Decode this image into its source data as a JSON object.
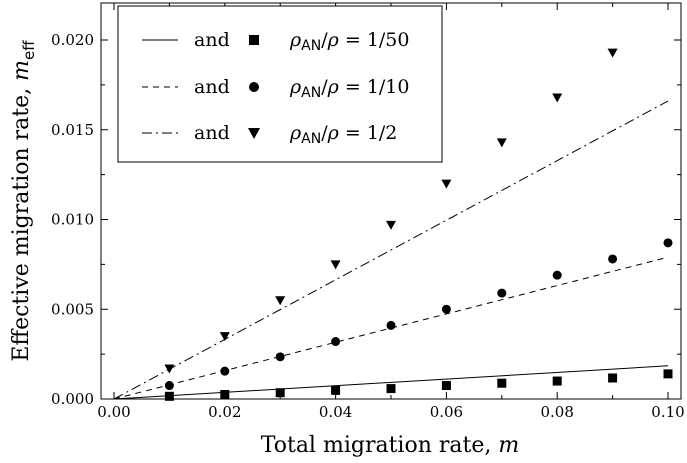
{
  "chart_data": {
    "type": "scatter",
    "xlabel": "Total migration rate, m",
    "ylabel": "Effective migration rate, m_eff",
    "xlim": [
      0,
      0.1
    ],
    "ylim": [
      0,
      0.02
    ],
    "x_ticks": [
      "0.00",
      "0.02",
      "0.04",
      "0.06",
      "0.08",
      "0.10"
    ],
    "y_ticks": [
      "0.000",
      "0.005",
      "0.010",
      "0.015",
      "0.020"
    ],
    "legend_position": "top-left",
    "series": [
      {
        "name": "ρAN/ρ = 1/50",
        "line_style": "solid",
        "marker": "square",
        "line": {
          "x": [
            0,
            0.1
          ],
          "y": [
            0,
            0.00185
          ]
        },
        "points": {
          "x": [
            0.01,
            0.02,
            0.03,
            0.04,
            0.05,
            0.06,
            0.07,
            0.08,
            0.09,
            0.1
          ],
          "y": [
            0.00015,
            0.00025,
            0.00035,
            0.00048,
            0.00058,
            0.00075,
            0.00088,
            0.001,
            0.00117,
            0.0014
          ]
        }
      },
      {
        "name": "ρAN/ρ = 1/10",
        "line_style": "dashed",
        "marker": "circle",
        "line": {
          "x": [
            0,
            0.1
          ],
          "y": [
            0,
            0.0079
          ]
        },
        "points": {
          "x": [
            0.01,
            0.02,
            0.03,
            0.04,
            0.05,
            0.06,
            0.07,
            0.08,
            0.09,
            0.1
          ],
          "y": [
            0.00075,
            0.00155,
            0.00235,
            0.0032,
            0.0041,
            0.005,
            0.0059,
            0.0069,
            0.0078,
            0.0087
          ]
        }
      },
      {
        "name": "ρAN/ρ = 1/2",
        "line_style": "dash-dot",
        "marker": "triangle-down",
        "line": {
          "x": [
            0,
            0.1
          ],
          "y": [
            0,
            0.0166
          ]
        },
        "points": {
          "x": [
            0.01,
            0.02,
            0.03,
            0.04,
            0.05,
            0.06,
            0.07,
            0.08,
            0.09
          ],
          "y": [
            0.0017,
            0.0035,
            0.0055,
            0.0075,
            0.0097,
            0.012,
            0.0143,
            0.0168,
            0.0193
          ]
        }
      }
    ]
  },
  "legend": {
    "connector": "and",
    "entries": [
      {
        "fraction": "1/50"
      },
      {
        "fraction": "1/10"
      },
      {
        "fraction": "1/2"
      }
    ]
  }
}
